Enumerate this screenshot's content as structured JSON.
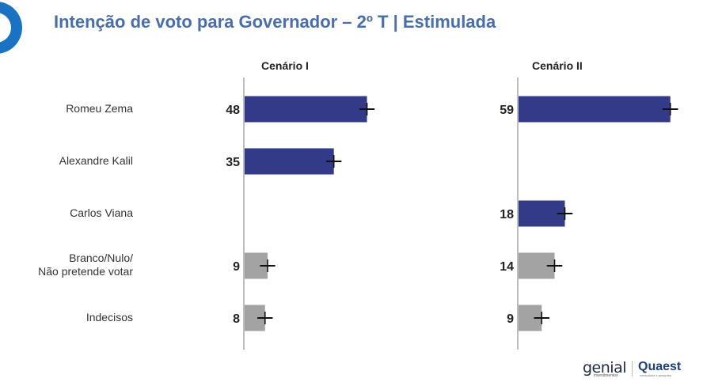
{
  "header": {
    "title": "Intenção de voto para Governador – 2º T | Estimulada"
  },
  "categories": [
    "Romeu Zema",
    "Alexandre Kalil",
    "Carlos Viana",
    "Branco/Nulo/\nNão pretende votar",
    "Indecisos"
  ],
  "category_lines": [
    [
      "Romeu Zema"
    ],
    [
      "Alexandre Kalil"
    ],
    [
      "Carlos Viana"
    ],
    [
      "Branco/Nulo/",
      "Não pretende votar"
    ],
    [
      "Indecisos"
    ]
  ],
  "colors": {
    "candidate": "#333b88",
    "other": "#a3a3a3",
    "axis": "#bdbdbd",
    "error": "#111111",
    "title": "#4a6eaa"
  },
  "chart_data": [
    {
      "type": "bar",
      "orientation": "horizontal",
      "title": "Cenário I",
      "categories": [
        "Romeu Zema",
        "Alexandre Kalil",
        "Carlos Viana",
        "Branco/Nulo/ Não pretende votar",
        "Indecisos"
      ],
      "values": [
        48,
        35,
        null,
        9,
        8
      ],
      "error_margin": 3,
      "kinds": [
        "candidate",
        "candidate",
        "candidate",
        "other",
        "other"
      ],
      "xlim": [
        0,
        60
      ]
    },
    {
      "type": "bar",
      "orientation": "horizontal",
      "title": "Cenário II",
      "categories": [
        "Romeu Zema",
        "Alexandre Kalil",
        "Carlos Viana",
        "Branco/Nulo/ Não pretende votar",
        "Indecisos"
      ],
      "values": [
        59,
        null,
        18,
        14,
        9
      ],
      "error_margin": 3,
      "kinds": [
        "candidate",
        "candidate",
        "candidate",
        "other",
        "other"
      ],
      "xlim": [
        0,
        60
      ]
    }
  ],
  "footer": {
    "logo_left": "genial",
    "logo_left_sub": "investimentos",
    "logo_right": "Quaest",
    "logo_right_sub": "consultoria e pesquisa"
  }
}
